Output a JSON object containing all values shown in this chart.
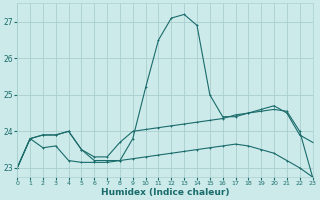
{
  "xlabel": "Humidex (Indice chaleur)",
  "ylabel": "",
  "background_color": "#cceaea",
  "grid_color": "#aacfcf",
  "line_color": "#1a6b6b",
  "x": [
    0,
    1,
    2,
    3,
    4,
    5,
    6,
    7,
    8,
    9,
    10,
    11,
    12,
    13,
    14,
    15,
    16,
    17,
    18,
    19,
    20,
    21,
    22,
    23
  ],
  "curve1": [
    23.0,
    23.8,
    23.9,
    23.9,
    24.0,
    23.5,
    23.2,
    23.2,
    23.2,
    23.8,
    25.2,
    26.5,
    27.1,
    27.2,
    26.9,
    25.0,
    24.4,
    24.4,
    24.5,
    24.6,
    24.7,
    24.5,
    23.9,
    23.7
  ],
  "curve2": [
    23.0,
    23.8,
    23.9,
    23.9,
    24.0,
    23.5,
    23.3,
    23.3,
    23.7,
    24.0,
    24.05,
    24.1,
    24.15,
    24.2,
    24.25,
    24.3,
    24.35,
    24.45,
    24.5,
    24.55,
    24.6,
    24.55,
    24.0,
    22.75
  ],
  "curve3": [
    23.0,
    23.8,
    23.55,
    23.6,
    23.2,
    23.15,
    23.15,
    23.15,
    23.2,
    23.25,
    23.3,
    23.35,
    23.4,
    23.45,
    23.5,
    23.55,
    23.6,
    23.65,
    23.6,
    23.5,
    23.4,
    23.2,
    23.0,
    22.75
  ],
  "xlim": [
    0,
    23
  ],
  "ylim": [
    22.75,
    27.5
  ],
  "yticks": [
    23,
    24,
    25,
    26,
    27
  ],
  "xticks": [
    0,
    1,
    2,
    3,
    4,
    5,
    6,
    7,
    8,
    9,
    10,
    11,
    12,
    13,
    14,
    15,
    16,
    17,
    18,
    19,
    20,
    21,
    22,
    23
  ],
  "tick_fontsize": 5.5,
  "xlabel_fontsize": 6.5,
  "lw": 0.8,
  "ms": 2.0
}
